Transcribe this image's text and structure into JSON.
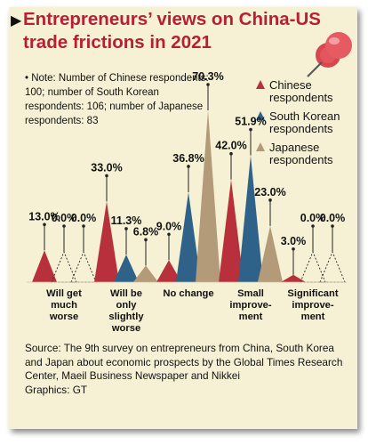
{
  "title_lines": [
    "Entrepreneurs’ views on China-US",
    "trade frictions in 2021"
  ],
  "note": "• Note: Number of Chinese respondents: 100; number of South Korean respondents: 106; number of Japanese respondents: 83",
  "source": "Source: The 9th survey on entrepreneurs from China, South Korea and Japan about economic prospects by the Global Times Research Center, Maeil Business Newspaper and Nikkei",
  "graphics": "Graphics: GT",
  "colors": {
    "chinese": "#b8303b",
    "korean": "#2f6289",
    "japanese": "#b39a78",
    "title": "#b72034",
    "background": "#f6f1d5"
  },
  "chart_data": {
    "type": "bar",
    "categories": [
      [
        "Will get",
        "much",
        "worse"
      ],
      [
        "Will be",
        "only",
        "slightly",
        "worse"
      ],
      [
        "No change"
      ],
      [
        "Small",
        "improve-",
        "ment"
      ],
      [
        "Significant",
        "improve-",
        "ment"
      ]
    ],
    "series": [
      {
        "name": "Chinese respondents",
        "name_lines": [
          "Chinese",
          "respondents"
        ],
        "values": [
          13.0,
          33.0,
          9.0,
          42.0,
          3.0
        ]
      },
      {
        "name": "South Korean respondents",
        "name_lines": [
          "South Korean",
          "respondents"
        ],
        "values": [
          0.0,
          11.3,
          36.8,
          51.9,
          0.0
        ]
      },
      {
        "name": "Japanese respondents",
        "name_lines": [
          "Japanese",
          "respondents"
        ],
        "values": [
          0.0,
          6.8,
          70.3,
          23.0,
          0.0
        ]
      }
    ],
    "unit": "%",
    "ylim": [
      0,
      70.3
    ],
    "grid": false,
    "legend": "top-right"
  }
}
